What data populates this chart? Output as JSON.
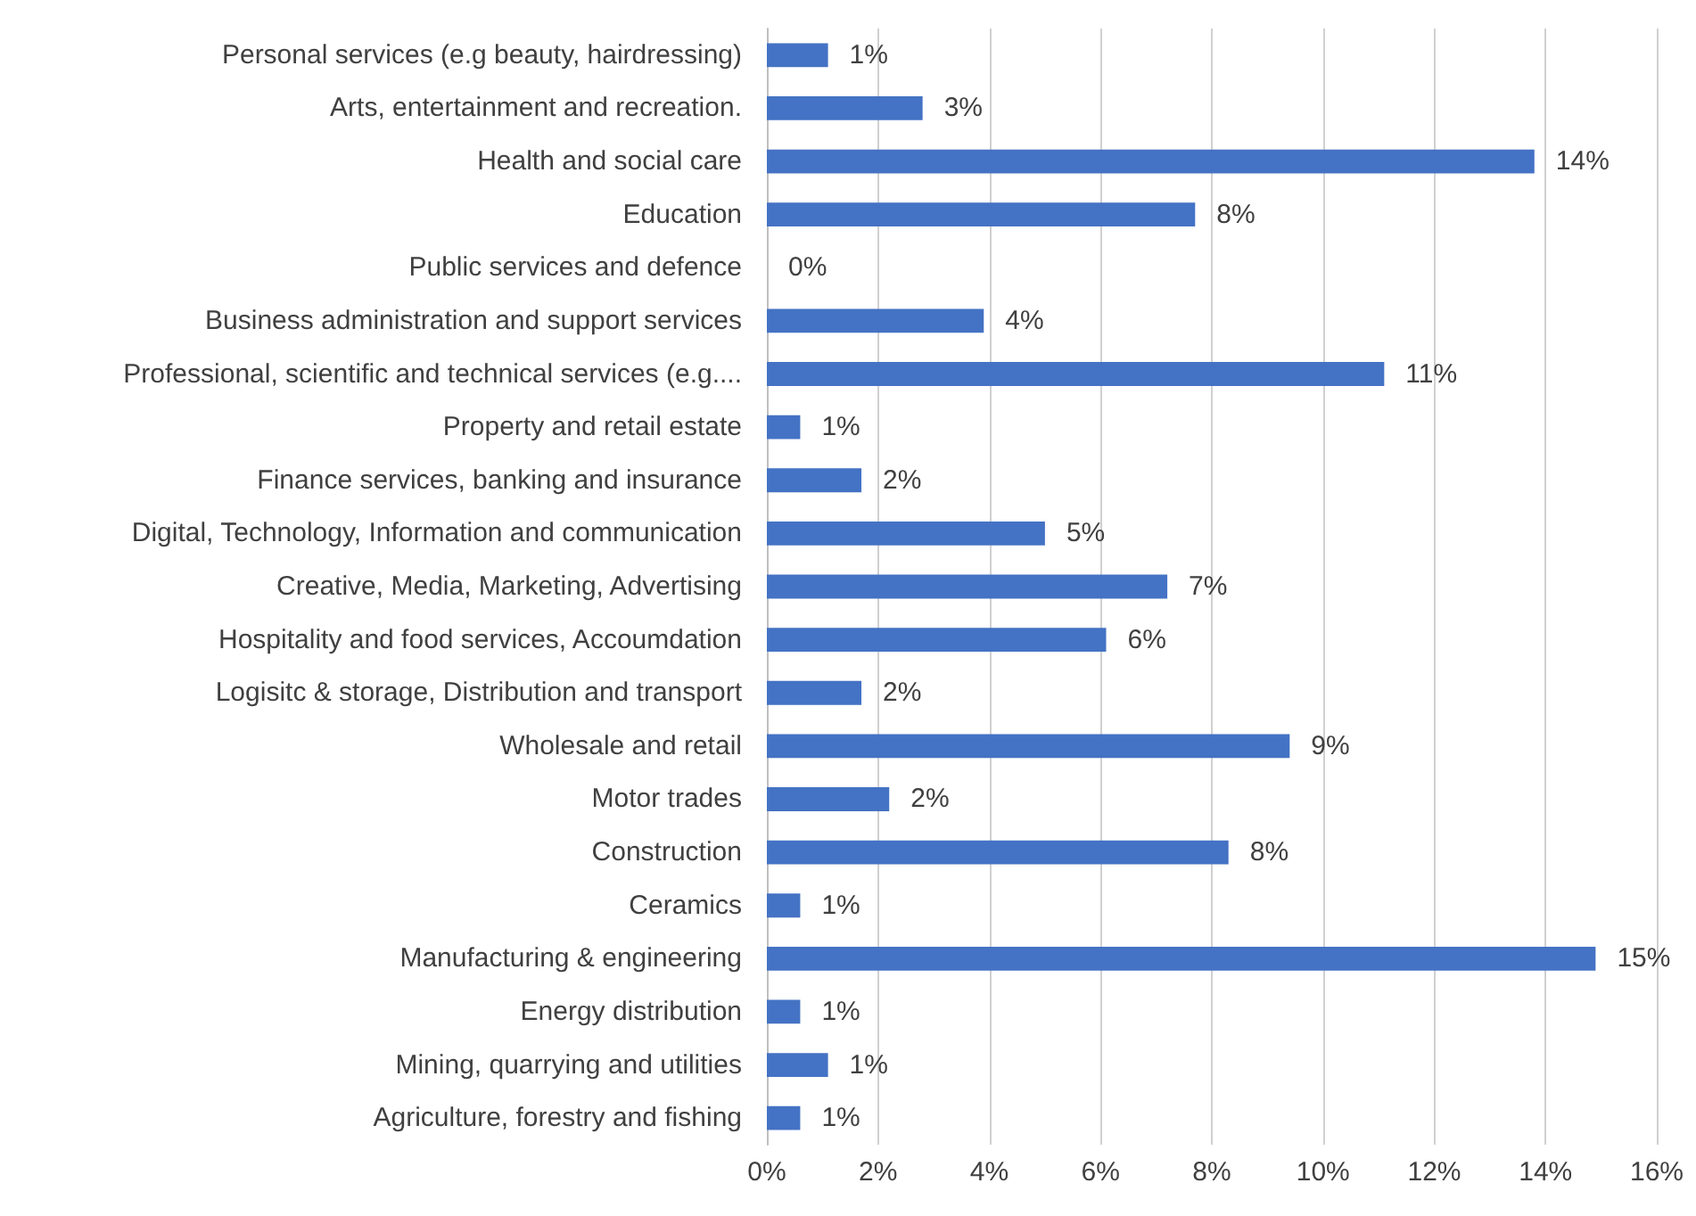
{
  "chart_data": {
    "type": "bar",
    "orientation": "horizontal",
    "categories": [
      "Personal services (e.g beauty, hairdressing)",
      "Arts, entertainment and recreation.",
      "Health and social care",
      "Education",
      "Public services and defence",
      "Business administration and support services",
      "Professional, scientific and technical services (e.g....",
      "Property and retail estate",
      "Finance services, banking and insurance",
      "Digital, Technology, Information and communication",
      "Creative, Media, Marketing, Advertising",
      "Hospitality and food services, Accoumdation",
      "Logisitc & storage, Distribution and transport",
      "Wholesale and retail",
      "Motor trades",
      "Construction",
      "Ceramics",
      "Manufacturing & engineering",
      "Energy distribution",
      "Mining, quarrying and utilities",
      "Agriculture, forestry and fishing"
    ],
    "values": [
      1.1,
      2.8,
      13.8,
      7.7,
      0,
      3.9,
      11.1,
      0.6,
      1.7,
      5.0,
      7.2,
      6.1,
      1.7,
      9.4,
      2.2,
      8.3,
      0.6,
      14.9,
      0.6,
      1.1,
      0.6
    ],
    "value_labels": [
      "1%",
      "3%",
      "14%",
      "8%",
      "0%",
      "4%",
      "11%",
      "1%",
      "2%",
      "5%",
      "7%",
      "6%",
      "2%",
      "9%",
      "2%",
      "8%",
      "1%",
      "15%",
      "1%",
      "1%",
      "1%"
    ],
    "color": "#4472c4",
    "xlim": [
      0,
      16
    ],
    "xticks": [
      {
        "value": 0,
        "label": "0%"
      },
      {
        "value": 2,
        "label": "2%"
      },
      {
        "value": 4,
        "label": "4%"
      },
      {
        "value": 6,
        "label": "6%"
      },
      {
        "value": 8,
        "label": "8%"
      },
      {
        "value": 10,
        "label": "10%"
      },
      {
        "value": 12,
        "label": "12%"
      },
      {
        "value": 14,
        "label": "14%"
      },
      {
        "value": 16,
        "label": "16%"
      }
    ],
    "grid": "x"
  }
}
